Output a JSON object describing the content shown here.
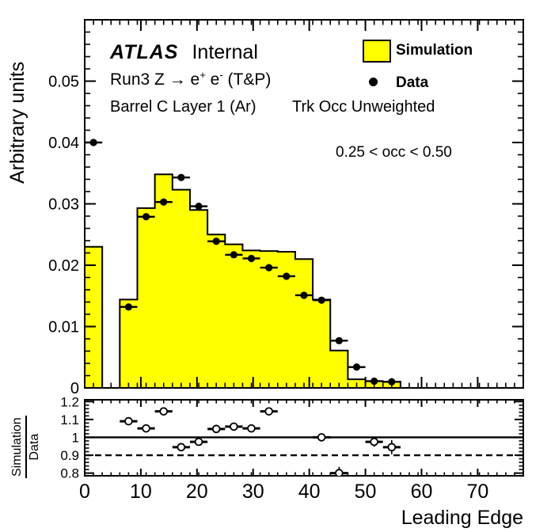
{
  "annotations": {
    "atlas": "ATLAS",
    "atlas_suffix": "Internal",
    "physics_parts": [
      "Run3 Z ",
      "→",
      " e",
      "+",
      " e",
      "-",
      " (T&P)"
    ],
    "detector_label": "Barrel C Layer 1 (Ar)",
    "weighting_label": "Trk Occ Unweighted",
    "occupancy_label": "0.25 < occ < 0.50"
  },
  "legend": {
    "items": [
      {
        "label": "Simulation",
        "marker": "filled-box",
        "color": "#ffff00"
      },
      {
        "label": "Data",
        "marker": "filled-circle",
        "color": "#000000"
      }
    ]
  },
  "chart_data": [
    {
      "type": "bar",
      "title": "",
      "xlabel": "Leading Edge",
      "ylabel": "Arbitrary units",
      "xlim": [
        0,
        78.125
      ],
      "ylim": [
        0,
        0.06
      ],
      "xticks": [
        0,
        10,
        20,
        30,
        40,
        50,
        60,
        70
      ],
      "yticks": [
        0,
        0.01,
        0.02,
        0.03,
        0.04,
        0.05
      ],
      "minor_x_step": 1.5625,
      "minor_y_step": 0.002,
      "grid": false,
      "legend_position": "top-right",
      "series": [
        {
          "name": "Simulation",
          "kind": "histogram",
          "fill": "#ffff00",
          "line_color": "#000000",
          "bin_start": 0,
          "bin_width": 3.125,
          "values": [
            0.023,
            0,
            0.0144,
            0.0293,
            0.0348,
            0.0323,
            0.029,
            0.025,
            0.0234,
            0.0224,
            0.0223,
            0.0222,
            0.021,
            0.0144,
            0.0061,
            0.0014,
            0.0011,
            0.001,
            0,
            0,
            0,
            0,
            0,
            0,
            0
          ]
        },
        {
          "name": "Data",
          "kind": "points",
          "color": "#000000",
          "x": [
            1.5625,
            7.8125,
            10.9375,
            14.0625,
            17.1875,
            20.3125,
            23.4375,
            26.5625,
            29.6875,
            32.8125,
            35.9375,
            39.0625,
            42.1875,
            45.3125,
            48.4375,
            51.5625,
            54.6875
          ],
          "y": [
            0.04,
            0.0132,
            0.0279,
            0.0303,
            0.0343,
            0.0296,
            0.0239,
            0.0217,
            0.0211,
            0.0196,
            0.0182,
            0.0151,
            0.0143,
            0.0077,
            0.0034,
            0.0011,
            0.001
          ],
          "xerr": 1.5625
        }
      ]
    },
    {
      "type": "scatter",
      "ylabel_numerator": "Simulation",
      "ylabel_denominator": "Data",
      "ylim": [
        0.785,
        1.21
      ],
      "yticks": [
        0.8,
        0.9,
        1,
        1.1,
        1.2
      ],
      "minor_y_step": 0.02,
      "reference_line_y": 1,
      "dashed_line_y": 0.9,
      "points": {
        "marker": "open-circle",
        "x": [
          7.8125,
          10.9375,
          14.0625,
          17.1875,
          20.3125,
          23.4375,
          26.5625,
          29.6875,
          32.8125,
          42.1875,
          45.3125,
          51.5625,
          54.6875
        ],
        "y": [
          1.09,
          1.05,
          1.145,
          0.945,
          0.975,
          1.047,
          1.06,
          1.05,
          1.145,
          1.0,
          0.8,
          0.975,
          0.945
        ],
        "yerr": [
          0.008,
          0.007,
          0.008,
          0.008,
          0.009,
          0.01,
          0.011,
          0.012,
          0.015,
          0.02,
          0.035,
          0.028,
          0.04
        ],
        "xerr": 1.5625
      }
    }
  ]
}
